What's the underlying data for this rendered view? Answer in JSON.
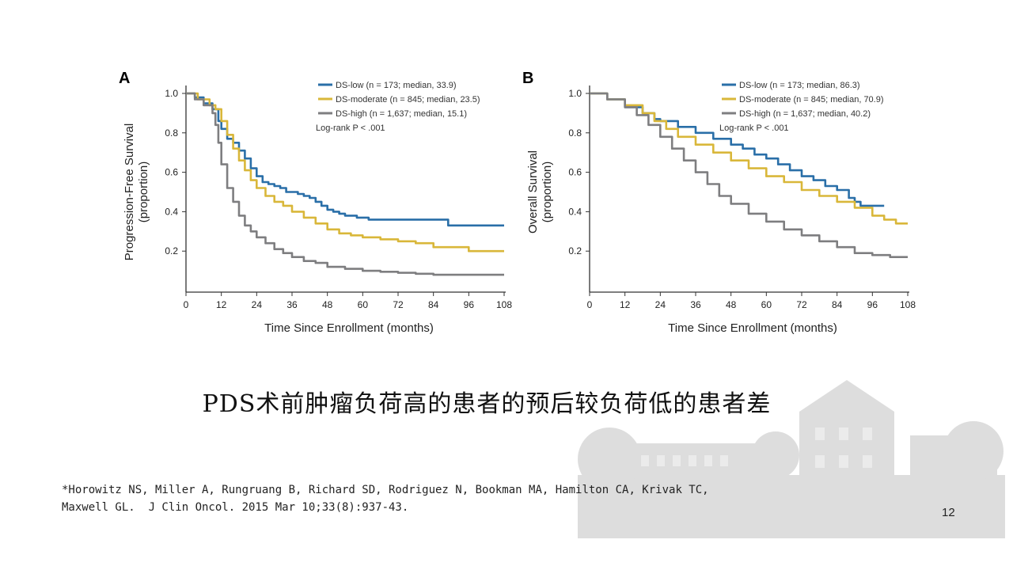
{
  "headline": "PDS术前肿瘤负荷高的患者的预后较负荷低的患者差",
  "reference": {
    "line1": "*Horowitz NS, Miller A, Rungruang B, Richard SD, Rodriguez N, Bookman MA, Hamilton CA, Krivak TC,",
    "line2": "Maxwell GL.  J Clin Oncol. 2015 Mar 10;33(8):937-43."
  },
  "page_number": "12",
  "colors": {
    "low": "#2a6fa8",
    "moderate": "#d9b73a",
    "high": "#7e7e80"
  },
  "chart_data": [
    {
      "type": "line",
      "panel_letter": "A",
      "xlabel": "Time Since Enrollment (months)",
      "ylabel_line1": "Progression-Free Survival",
      "ylabel_line2": "(proportion)",
      "xlim": [
        0,
        108
      ],
      "ylim": [
        0.0,
        1.0
      ],
      "x_ticks": [
        0,
        12,
        24,
        36,
        48,
        60,
        72,
        84,
        96,
        108
      ],
      "y_ticks": [
        0.2,
        0.4,
        0.6,
        0.8,
        1.0
      ],
      "x_tick_labels": [
        "0",
        "12",
        "24",
        "36",
        "48",
        "60",
        "72",
        "84",
        "96",
        "108"
      ],
      "y_tick_labels": [
        "0.2",
        "0.4",
        "0.6",
        "0.8",
        "1.0"
      ],
      "annotation": "Log-rank P < .001",
      "series": [
        {
          "name": "DS-low (n = 173; median, 33.9)",
          "key": "low",
          "points": [
            [
              0,
              1.0
            ],
            [
              3,
              0.98
            ],
            [
              6,
              0.95
            ],
            [
              9,
              0.92
            ],
            [
              11,
              0.86
            ],
            [
              12,
              0.82
            ],
            [
              14,
              0.77
            ],
            [
              16,
              0.75
            ],
            [
              18,
              0.71
            ],
            [
              20,
              0.67
            ],
            [
              22,
              0.62
            ],
            [
              24,
              0.58
            ],
            [
              26,
              0.55
            ],
            [
              28,
              0.54
            ],
            [
              30,
              0.53
            ],
            [
              32,
              0.52
            ],
            [
              34,
              0.5
            ],
            [
              36,
              0.5
            ],
            [
              38,
              0.49
            ],
            [
              40,
              0.48
            ],
            [
              42,
              0.47
            ],
            [
              44,
              0.45
            ],
            [
              46,
              0.43
            ],
            [
              48,
              0.41
            ],
            [
              50,
              0.4
            ],
            [
              52,
              0.39
            ],
            [
              54,
              0.38
            ],
            [
              58,
              0.37
            ],
            [
              62,
              0.36
            ],
            [
              70,
              0.36
            ],
            [
              80,
              0.36
            ],
            [
              88,
              0.36
            ],
            [
              89,
              0.33
            ],
            [
              96,
              0.33
            ],
            [
              108,
              0.33
            ]
          ]
        },
        {
          "name": "DS-moderate (n = 845; median, 23.5)",
          "key": "moderate",
          "points": [
            [
              0,
              1.0
            ],
            [
              4,
              0.97
            ],
            [
              8,
              0.94
            ],
            [
              10,
              0.92
            ],
            [
              12,
              0.86
            ],
            [
              14,
              0.79
            ],
            [
              16,
              0.72
            ],
            [
              18,
              0.66
            ],
            [
              20,
              0.61
            ],
            [
              22,
              0.56
            ],
            [
              24,
              0.52
            ],
            [
              27,
              0.48
            ],
            [
              30,
              0.45
            ],
            [
              33,
              0.43
            ],
            [
              36,
              0.4
            ],
            [
              40,
              0.37
            ],
            [
              44,
              0.34
            ],
            [
              48,
              0.31
            ],
            [
              52,
              0.29
            ],
            [
              56,
              0.28
            ],
            [
              60,
              0.27
            ],
            [
              66,
              0.26
            ],
            [
              72,
              0.25
            ],
            [
              78,
              0.24
            ],
            [
              84,
              0.22
            ],
            [
              90,
              0.22
            ],
            [
              96,
              0.2
            ],
            [
              108,
              0.2
            ]
          ]
        },
        {
          "name": "DS-high (n = 1,637; median, 15.1)",
          "key": "high",
          "points": [
            [
              0,
              1.0
            ],
            [
              3,
              0.97
            ],
            [
              6,
              0.94
            ],
            [
              9,
              0.9
            ],
            [
              10,
              0.84
            ],
            [
              11,
              0.75
            ],
            [
              12,
              0.64
            ],
            [
              14,
              0.52
            ],
            [
              16,
              0.45
            ],
            [
              18,
              0.38
            ],
            [
              20,
              0.33
            ],
            [
              22,
              0.3
            ],
            [
              24,
              0.27
            ],
            [
              27,
              0.24
            ],
            [
              30,
              0.21
            ],
            [
              33,
              0.19
            ],
            [
              36,
              0.17
            ],
            [
              40,
              0.15
            ],
            [
              44,
              0.14
            ],
            [
              48,
              0.12
            ],
            [
              54,
              0.11
            ],
            [
              60,
              0.1
            ],
            [
              66,
              0.095
            ],
            [
              72,
              0.09
            ],
            [
              78,
              0.085
            ],
            [
              84,
              0.08
            ],
            [
              96,
              0.08
            ],
            [
              108,
              0.08
            ]
          ]
        }
      ]
    },
    {
      "type": "line",
      "panel_letter": "B",
      "xlabel": "Time Since Enrollment (months)",
      "ylabel_line1": "Overall Survival",
      "ylabel_line2": "(proportion)",
      "xlim": [
        0,
        108
      ],
      "ylim": [
        0.0,
        1.0
      ],
      "x_ticks": [
        0,
        12,
        24,
        36,
        48,
        60,
        72,
        84,
        96,
        108
      ],
      "y_ticks": [
        0.2,
        0.4,
        0.6,
        0.8,
        1.0
      ],
      "x_tick_labels": [
        "0",
        "12",
        "24",
        "36",
        "48",
        "60",
        "72",
        "84",
        "96",
        "108"
      ],
      "y_tick_labels": [
        "0.2",
        "0.4",
        "0.6",
        "0.8",
        "1.0"
      ],
      "annotation": "Log-rank P < .001",
      "series": [
        {
          "name": "DS-low (n = 173; median, 86.3)",
          "key": "low",
          "points": [
            [
              0,
              1.0
            ],
            [
              6,
              0.97
            ],
            [
              12,
              0.93
            ],
            [
              18,
              0.9
            ],
            [
              22,
              0.87
            ],
            [
              24,
              0.86
            ],
            [
              30,
              0.83
            ],
            [
              36,
              0.8
            ],
            [
              42,
              0.77
            ],
            [
              48,
              0.74
            ],
            [
              52,
              0.72
            ],
            [
              56,
              0.69
            ],
            [
              60,
              0.67
            ],
            [
              64,
              0.64
            ],
            [
              68,
              0.61
            ],
            [
              72,
              0.58
            ],
            [
              76,
              0.56
            ],
            [
              80,
              0.53
            ],
            [
              84,
              0.51
            ],
            [
              88,
              0.47
            ],
            [
              90,
              0.45
            ],
            [
              92,
              0.43
            ],
            [
              98,
              0.43
            ],
            [
              100,
              0.43
            ]
          ]
        },
        {
          "name": "DS-moderate (n = 845; median, 70.9)",
          "key": "moderate",
          "points": [
            [
              0,
              1.0
            ],
            [
              6,
              0.97
            ],
            [
              12,
              0.94
            ],
            [
              18,
              0.9
            ],
            [
              22,
              0.86
            ],
            [
              26,
              0.82
            ],
            [
              30,
              0.78
            ],
            [
              36,
              0.74
            ],
            [
              42,
              0.7
            ],
            [
              48,
              0.66
            ],
            [
              54,
              0.62
            ],
            [
              60,
              0.58
            ],
            [
              66,
              0.55
            ],
            [
              72,
              0.51
            ],
            [
              78,
              0.48
            ],
            [
              84,
              0.45
            ],
            [
              90,
              0.42
            ],
            [
              96,
              0.38
            ],
            [
              100,
              0.36
            ],
            [
              104,
              0.34
            ],
            [
              108,
              0.34
            ]
          ]
        },
        {
          "name": "DS-high (n = 1,637; median, 40.2)",
          "key": "high",
          "points": [
            [
              0,
              1.0
            ],
            [
              6,
              0.97
            ],
            [
              12,
              0.93
            ],
            [
              16,
              0.89
            ],
            [
              20,
              0.84
            ],
            [
              24,
              0.78
            ],
            [
              28,
              0.72
            ],
            [
              32,
              0.66
            ],
            [
              36,
              0.6
            ],
            [
              40,
              0.54
            ],
            [
              44,
              0.48
            ],
            [
              48,
              0.44
            ],
            [
              54,
              0.39
            ],
            [
              60,
              0.35
            ],
            [
              66,
              0.31
            ],
            [
              72,
              0.28
            ],
            [
              78,
              0.25
            ],
            [
              84,
              0.22
            ],
            [
              90,
              0.19
            ],
            [
              96,
              0.18
            ],
            [
              102,
              0.17
            ],
            [
              108,
              0.17
            ]
          ]
        }
      ]
    }
  ]
}
